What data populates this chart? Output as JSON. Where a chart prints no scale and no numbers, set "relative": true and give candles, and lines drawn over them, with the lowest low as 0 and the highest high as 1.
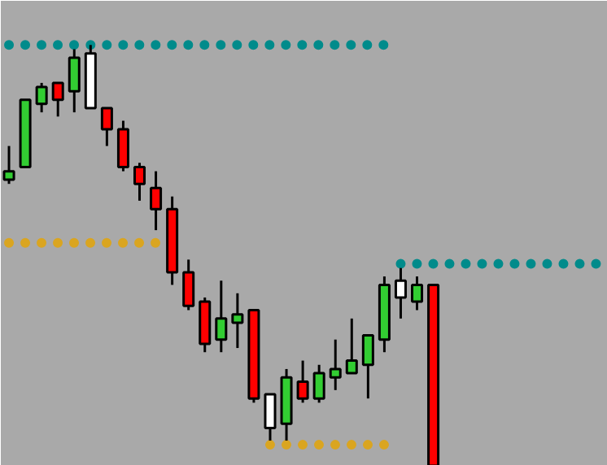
{
  "chart_data": {
    "type": "candlestick",
    "relative": true,
    "categories": [
      null,
      null,
      null,
      null,
      null,
      null,
      null,
      null,
      null,
      null,
      null,
      null,
      null,
      null,
      null,
      null,
      null,
      null,
      null,
      null,
      null,
      null,
      null,
      null,
      null,
      null,
      null,
      null,
      null,
      null,
      null,
      null,
      null,
      null,
      null,
      null,
      null
    ],
    "ohlc": [
      [
        0.68,
        0.76,
        0.67,
        0.7
      ],
      [
        0.71,
        0.87,
        0.71,
        0.87
      ],
      [
        0.86,
        0.91,
        0.84,
        0.9
      ],
      [
        0.91,
        0.91,
        0.83,
        0.87
      ],
      [
        0.89,
        0.99,
        0.84,
        0.97
      ],
      [
        0.85,
        1.0,
        0.85,
        0.98
      ],
      [
        0.85,
        0.85,
        0.76,
        0.8
      ],
      [
        0.8,
        0.82,
        0.7,
        0.71
      ],
      [
        0.71,
        0.72,
        0.63,
        0.67
      ],
      [
        0.66,
        0.7,
        0.56,
        0.61
      ],
      [
        0.61,
        0.64,
        0.43,
        0.46
      ],
      [
        0.46,
        0.49,
        0.37,
        0.38
      ],
      [
        0.39,
        0.4,
        0.27,
        0.29
      ],
      [
        0.3,
        0.44,
        0.27,
        0.35
      ],
      [
        0.34,
        0.41,
        0.28,
        0.36
      ],
      [
        0.37,
        0.37,
        0.15,
        0.16
      ],
      [
        0.09,
        0.17,
        0.06,
        0.17
      ],
      [
        0.1,
        0.23,
        0.06,
        0.21
      ],
      [
        0.2,
        0.25,
        0.15,
        0.16
      ],
      [
        0.16,
        0.24,
        0.15,
        0.22
      ],
      [
        0.21,
        0.3,
        0.18,
        0.23
      ],
      [
        0.22,
        0.35,
        0.22,
        0.25
      ],
      [
        0.24,
        0.31,
        0.16,
        0.31
      ],
      [
        0.3,
        0.45,
        0.27,
        0.43
      ],
      [
        0.4,
        0.47,
        0.35,
        0.44
      ],
      [
        0.39,
        0.45,
        0.37,
        0.43
      ],
      [
        0.43,
        0.43,
        0.0,
        0.0
      ],
      null,
      null,
      null,
      null,
      null,
      null,
      null,
      null,
      null,
      null
    ],
    "colors": [
      "#32cd32",
      "#32cd32",
      "#32cd32",
      "#ff0000",
      "#32cd32",
      "#ffffff",
      "#ff0000",
      "#ff0000",
      "#ff0000",
      "#ff0000",
      "#ff0000",
      "#ff0000",
      "#ff0000",
      "#32cd32",
      "#32cd32",
      "#ff0000",
      "#ffffff",
      "#32cd32",
      "#ff0000",
      "#32cd32",
      "#32cd32",
      "#32cd32",
      "#32cd32",
      "#32cd32",
      "#ffffff",
      "#32cd32",
      "#ff0000",
      null,
      null,
      null,
      null,
      null,
      null,
      null,
      null,
      null,
      null
    ],
    "line_style": "dotted",
    "series": [
      {
        "type": "line",
        "color": "#008b8b",
        "values": [
          1.0,
          1.0,
          1.0,
          1.0,
          1.0,
          null,
          null,
          null,
          null,
          null,
          null,
          null,
          null,
          null,
          null,
          null,
          null,
          null,
          null,
          null,
          null,
          null,
          null,
          null,
          null,
          null,
          null,
          null,
          null,
          null,
          null,
          null,
          null,
          null,
          null,
          null,
          null
        ]
      },
      {
        "type": "line",
        "color": "#008b8b",
        "values": [
          null,
          null,
          null,
          null,
          null,
          1.0,
          1.0,
          1.0,
          1.0,
          1.0,
          1.0,
          1.0,
          1.0,
          1.0,
          1.0,
          1.0,
          1.0,
          1.0,
          1.0,
          1.0,
          1.0,
          1.0,
          1.0,
          1.0,
          null,
          null,
          null,
          null,
          null,
          null,
          null,
          null,
          null,
          null,
          null,
          null,
          null
        ]
      },
      {
        "type": "line",
        "color": "#008b8b",
        "values": [
          null,
          null,
          null,
          null,
          null,
          null,
          null,
          null,
          null,
          null,
          null,
          null,
          null,
          null,
          null,
          null,
          null,
          null,
          null,
          null,
          null,
          null,
          null,
          null,
          0.48,
          0.48,
          0.48,
          0.48,
          0.48,
          0.48,
          0.48,
          0.48,
          0.48,
          0.48,
          0.48,
          0.48,
          0.48
        ]
      },
      {
        "type": "line",
        "color": "#daa520",
        "values": [
          0.53,
          0.53,
          0.53,
          0.53,
          0.53,
          0.53,
          0.53,
          0.53,
          0.53,
          0.53,
          null,
          null,
          null,
          null,
          null,
          null,
          null,
          null,
          null,
          null,
          null,
          null,
          null,
          null,
          null,
          null,
          null,
          null,
          null,
          null,
          null,
          null,
          null,
          null,
          null,
          null,
          null
        ]
      },
      {
        "type": "line",
        "color": "#daa520",
        "values": [
          null,
          null,
          null,
          null,
          null,
          null,
          null,
          null,
          null,
          null,
          null,
          null,
          null,
          null,
          null,
          null,
          0.05,
          0.05,
          0.05,
          0.05,
          0.05,
          0.05,
          0.05,
          0.05,
          null,
          null,
          null,
          null,
          null,
          null,
          null,
          null,
          null,
          null,
          null,
          null,
          null
        ]
      }
    ]
  }
}
